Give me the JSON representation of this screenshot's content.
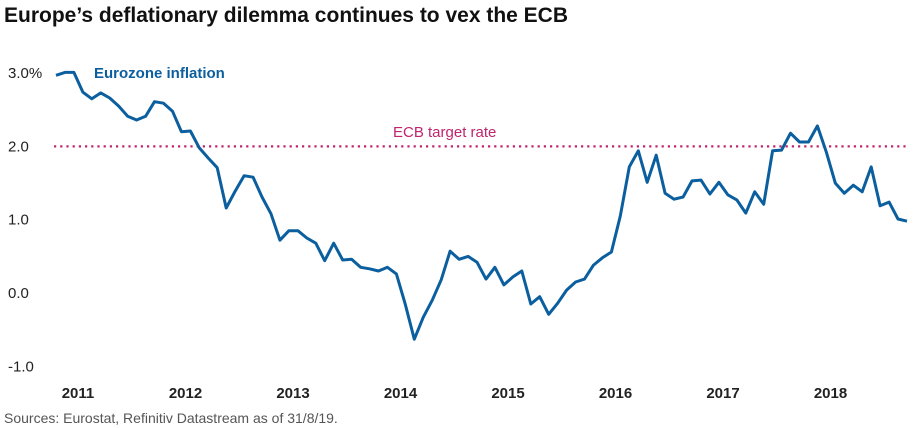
{
  "chart_data": {
    "type": "line",
    "title": "Europe’s deflationary dilemma continues to vex the ECB",
    "source": "Sources: Eurostat, Refinitiv Datastream as of 31/8/19.",
    "xlabel": "",
    "ylabel": "",
    "ylim": [
      -1.0,
      3.0
    ],
    "y_ticks": [
      {
        "value": 3.0,
        "label": "3.0%"
      },
      {
        "value": 2.0,
        "label": "2.0"
      },
      {
        "value": 1.0,
        "label": "1.0"
      },
      {
        "value": 0.0,
        "label": "0.0"
      },
      {
        "value": -1.0,
        "label": "-1.0"
      }
    ],
    "x_tick_labels": [
      "2011",
      "2012",
      "2013",
      "2014",
      "2015",
      "2016",
      "2017",
      "2018"
    ],
    "grid": false,
    "x_start": "2011-09",
    "x_frequency": "monthly",
    "series": [
      {
        "name": "Eurozone inflation",
        "color": "#0b5f9e",
        "values": [
          2.97,
          3.01,
          3.01,
          2.74,
          2.65,
          2.73,
          2.66,
          2.55,
          2.41,
          2.36,
          2.41,
          2.61,
          2.59,
          2.48,
          2.2,
          2.21,
          1.98,
          1.84,
          1.71,
          1.16,
          1.39,
          1.6,
          1.58,
          1.31,
          1.08,
          0.72,
          0.85,
          0.85,
          0.75,
          0.68,
          0.44,
          0.68,
          0.45,
          0.46,
          0.35,
          0.33,
          0.3,
          0.35,
          0.26,
          -0.16,
          -0.63,
          -0.33,
          -0.1,
          0.18,
          0.57,
          0.46,
          0.5,
          0.42,
          0.19,
          0.35,
          0.11,
          0.22,
          0.3,
          -0.15,
          -0.05,
          -0.29,
          -0.14,
          0.04,
          0.15,
          0.19,
          0.38,
          0.48,
          0.56,
          1.05,
          1.72,
          1.94,
          1.51,
          1.88,
          1.36,
          1.28,
          1.31,
          1.53,
          1.54,
          1.35,
          1.51,
          1.34,
          1.27,
          1.09,
          1.38,
          1.21,
          1.94,
          1.95,
          2.18,
          2.06,
          2.06,
          2.28,
          1.92,
          1.5,
          1.36,
          1.47,
          1.38,
          1.72,
          1.19,
          1.24,
          1.01,
          0.98
        ]
      }
    ],
    "reference_line": {
      "name": "ECB target rate",
      "value": 2.0,
      "color": "#c0246e",
      "style": "dotted"
    }
  }
}
